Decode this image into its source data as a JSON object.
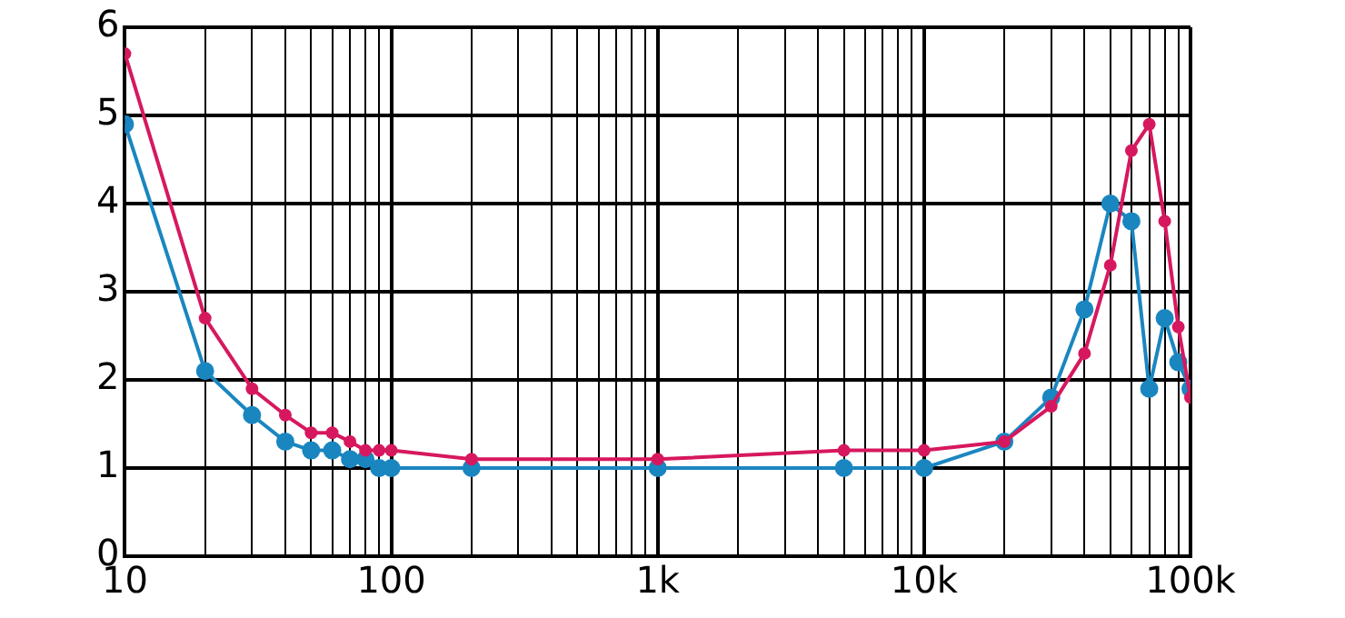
{
  "chart_data": {
    "type": "line",
    "log": "x",
    "grid": true,
    "legend": false,
    "marker": "circle",
    "line_style": "solid",
    "xlim": [
      10,
      100000
    ],
    "ylim": [
      0,
      6
    ],
    "yticks": [
      0,
      1,
      2,
      3,
      4,
      5,
      6
    ],
    "xticks": [
      {
        "value": 10,
        "label": "10"
      },
      {
        "value": 20,
        "label": null
      },
      {
        "value": 30,
        "label": null
      },
      {
        "value": 40,
        "label": null
      },
      {
        "value": 50,
        "label": null
      },
      {
        "value": 60,
        "label": null
      },
      {
        "value": 70,
        "label": null
      },
      {
        "value": 80,
        "label": null
      },
      {
        "value": 90,
        "label": null
      },
      {
        "value": 100,
        "label": "100"
      },
      {
        "value": 200,
        "label": null
      },
      {
        "value": 300,
        "label": null
      },
      {
        "value": 400,
        "label": null
      },
      {
        "value": 500,
        "label": null
      },
      {
        "value": 600,
        "label": null
      },
      {
        "value": 700,
        "label": null
      },
      {
        "value": 800,
        "label": null
      },
      {
        "value": 900,
        "label": null
      },
      {
        "value": 1000,
        "label": "1k"
      },
      {
        "value": 2000,
        "label": null
      },
      {
        "value": 3000,
        "label": null
      },
      {
        "value": 4000,
        "label": null
      },
      {
        "value": 5000,
        "label": null
      },
      {
        "value": 6000,
        "label": null
      },
      {
        "value": 7000,
        "label": null
      },
      {
        "value": 8000,
        "label": null
      },
      {
        "value": 9000,
        "label": null
      },
      {
        "value": 10000,
        "label": "10k"
      },
      {
        "value": 20000,
        "label": null
      },
      {
        "value": 30000,
        "label": null
      },
      {
        "value": 40000,
        "label": null
      },
      {
        "value": 50000,
        "label": null
      },
      {
        "value": 60000,
        "label": null
      },
      {
        "value": 70000,
        "label": null
      },
      {
        "value": 80000,
        "label": null
      },
      {
        "value": 90000,
        "label": null
      },
      {
        "value": 100000,
        "label": "100k"
      }
    ],
    "x": [
      10,
      20,
      30,
      40,
      50,
      60,
      70,
      80,
      90,
      100,
      200,
      1000,
      5000,
      10000,
      20000,
      30000,
      40000,
      50000,
      60000,
      70000,
      80000,
      90000,
      100000
    ],
    "series": [
      {
        "color": "#d6185f",
        "values": [
          5.7,
          2.7,
          1.9,
          1.6,
          1.4,
          1.4,
          1.3,
          1.2,
          1.2,
          1.2,
          1.1,
          1.1,
          1.2,
          1.2,
          1.3,
          1.7,
          2.3,
          3.3,
          4.6,
          4.9,
          3.8,
          2.6,
          1.8
        ]
      },
      {
        "color": "#1a86c0",
        "values": [
          4.9,
          2.1,
          1.6,
          1.3,
          1.2,
          1.2,
          1.1,
          1.1,
          1.0,
          1.0,
          1.0,
          1.0,
          1.0,
          1.0,
          1.3,
          1.8,
          2.8,
          4.0,
          3.8,
          1.9,
          2.7,
          2.2,
          1.9
        ]
      }
    ]
  }
}
